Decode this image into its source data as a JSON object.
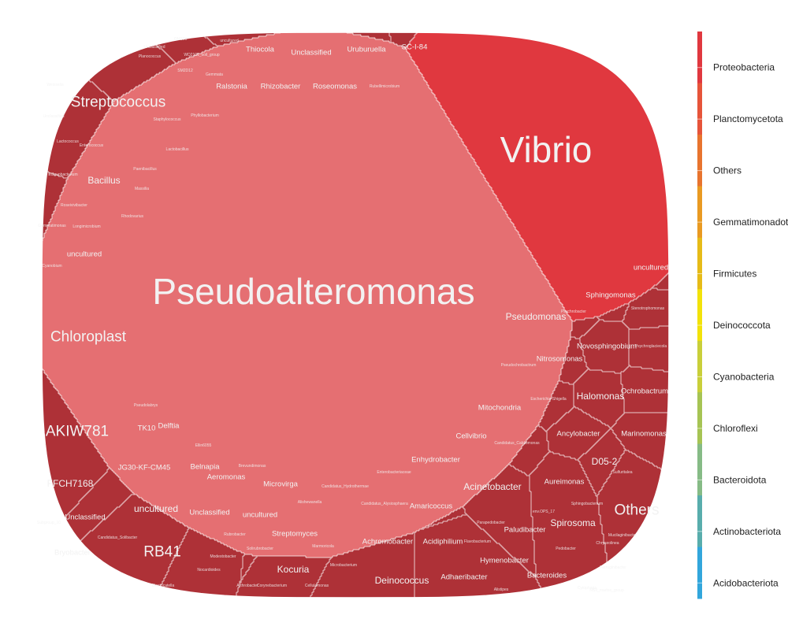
{
  "chart_data": {
    "type": "voronoi-treemap",
    "legend": {
      "position": "right",
      "entries": [
        {
          "name": "Proteobacteria",
          "color": "#e0383f"
        },
        {
          "name": "Planctomycetota",
          "color": "#e6543a"
        },
        {
          "name": "Others",
          "color": "#e8742e"
        },
        {
          "name": "Gemmatimonadota",
          "color": "#e99a22"
        },
        {
          "name": "Firmicutes",
          "color": "#e6bb18"
        },
        {
          "name": "Deinococcota",
          "color": "#f2e20a"
        },
        {
          "name": "Cyanobacteria",
          "color": "#c9cf3a"
        },
        {
          "name": "Chloroflexi",
          "color": "#a6c454"
        },
        {
          "name": "Bacteroidota",
          "color": "#86bb86"
        },
        {
          "name": "Actinobacteriota",
          "color": "#58adac"
        },
        {
          "name": "Acidobacteriota",
          "color": "#32a6dc"
        }
      ]
    },
    "genera": [
      {
        "name": "Vibrio",
        "phylum": "Proteobacteria",
        "rank": 1
      },
      {
        "name": "Pseudoalteromonas",
        "phylum": "Proteobacteria",
        "rank": 1
      },
      {
        "name": "Chloroplast",
        "phylum": "Cyanobacteria",
        "rank": 2
      },
      {
        "name": "Streptococcus",
        "phylum": "Firmicutes",
        "rank": 2
      },
      {
        "name": "AKIW781",
        "phylum": "Chloroflexi",
        "rank": 2
      },
      {
        "name": "Others",
        "phylum": "Others",
        "rank": 2
      },
      {
        "name": "RB41",
        "phylum": "Acidobacteriota",
        "rank": 2
      },
      {
        "name": "Pseudomonas",
        "phylum": "Proteobacteria",
        "rank": 3
      },
      {
        "name": "Acinetobacter",
        "phylum": "Proteobacteria",
        "rank": 3
      },
      {
        "name": "Halomonas",
        "phylum": "Proteobacteria",
        "rank": 3
      },
      {
        "name": "Deinococcus",
        "phylum": "Deinococcota",
        "rank": 3
      },
      {
        "name": "D05-2",
        "phylum": "Proteobacteria",
        "rank": 3
      },
      {
        "name": "Spirosoma",
        "phylum": "Bacteroidota",
        "rank": 3
      },
      {
        "name": "FFCH7168",
        "phylum": "Chloroflexi",
        "rank": 3
      },
      {
        "name": "Bacillus",
        "phylum": "Firmicutes",
        "rank": 3
      },
      {
        "name": "uncultured",
        "phylum": "Acidobacteriota",
        "rank": 3
      },
      {
        "name": "Kocuria",
        "phylum": "Actinobacteriota",
        "rank": 3
      },
      {
        "name": "Ralstonia",
        "phylum": "Proteobacteria",
        "rank": 4
      },
      {
        "name": "Rhizobacter",
        "phylum": "Proteobacteria",
        "rank": 4
      },
      {
        "name": "Roseomonas",
        "phylum": "Proteobacteria",
        "rank": 4
      },
      {
        "name": "Thiocola",
        "phylum": "Proteobacteria",
        "rank": 4
      },
      {
        "name": "Unclassified",
        "phylum": "Proteobacteria",
        "rank": 4
      },
      {
        "name": "Uruburuella",
        "phylum": "Proteobacteria",
        "rank": 4
      },
      {
        "name": "SC-I-84",
        "phylum": "Proteobacteria",
        "rank": 4
      },
      {
        "name": "Mitochondria",
        "phylum": "Proteobacteria",
        "rank": 4
      },
      {
        "name": "Ancylobacter",
        "phylum": "Proteobacteria",
        "rank": 4
      },
      {
        "name": "Marinomonas",
        "phylum": "Proteobacteria",
        "rank": 4
      },
      {
        "name": "Aureimonas",
        "phylum": "Proteobacteria",
        "rank": 4
      },
      {
        "name": "Amaricoccus",
        "phylum": "Proteobacteria",
        "rank": 4
      },
      {
        "name": "Acidiphilium",
        "phylum": "Proteobacteria",
        "rank": 4
      },
      {
        "name": "Achromobacter",
        "phylum": "Proteobacteria",
        "rank": 4
      },
      {
        "name": "Aeromonas",
        "phylum": "Proteobacteria",
        "rank": 4
      },
      {
        "name": "Delftia",
        "phylum": "Proteobacteria",
        "rank": 4
      },
      {
        "name": "Belnapia",
        "phylum": "Proteobacteria",
        "rank": 4
      },
      {
        "name": "Microvirga",
        "phylum": "Proteobacteria",
        "rank": 4
      },
      {
        "name": "Cellvibrio",
        "phylum": "Proteobacteria",
        "rank": 4
      },
      {
        "name": "Nitrosomonas",
        "phylum": "Proteobacteria",
        "rank": 4
      },
      {
        "name": "Novosphingobium",
        "phylum": "Proteobacteria",
        "rank": 4
      },
      {
        "name": "Ochrobactrum",
        "phylum": "Proteobacteria",
        "rank": 4
      },
      {
        "name": "Sphingomonas",
        "phylum": "Proteobacteria",
        "rank": 4
      },
      {
        "name": "uncultured",
        "phylum": "Proteobacteria",
        "rank": 4
      },
      {
        "name": "Enhydrobacter",
        "phylum": "Proteobacteria",
        "rank": 4
      },
      {
        "name": "Rubellimicrobium",
        "phylum": "Proteobacteria",
        "rank": 5
      },
      {
        "name": "Phyllobacterium",
        "phylum": "Proteobacteria",
        "rank": 5
      },
      {
        "name": "Massilia",
        "phylum": "Proteobacteria",
        "rank": 5
      },
      {
        "name": "Ellin6055",
        "phylum": "Proteobacteria",
        "rank": 5
      },
      {
        "name": "Brevundimonas",
        "phylum": "Proteobacteria",
        "rank": 5
      },
      {
        "name": "Alishewanella",
        "phylum": "Proteobacteria",
        "rank": 5
      },
      {
        "name": "Pseudochrobactrum",
        "phylum": "Proteobacteria",
        "rank": 5
      },
      {
        "name": "Escherichia-Shigella",
        "phylum": "Proteobacteria",
        "rank": 5
      },
      {
        "name": "Psychrobacter",
        "phylum": "Proteobacteria",
        "rank": 5
      },
      {
        "name": "Stenotrophomonas",
        "phylum": "Proteobacteria",
        "rank": 5
      },
      {
        "name": "Psychroglaciecola",
        "phylum": "Proteobacteria",
        "rank": 5
      },
      {
        "name": "Candidatus_Alysiosphaera",
        "phylum": "Proteobacteria",
        "rank": 5
      },
      {
        "name": "Candidatus_Caldiomonas",
        "phylum": "Proteobacteria",
        "rank": 5
      },
      {
        "name": "Candidatus_Hydrothermae",
        "phylum": "Proteobacteria",
        "rank": 5
      },
      {
        "name": "Enterobacteriaceae",
        "phylum": "Proteobacteria",
        "rank": 5
      },
      {
        "name": "Pseudolabrys",
        "phylum": "Proteobacteria",
        "rank": 5
      },
      {
        "name": "Rhodovarius",
        "phylum": "Proteobacteria",
        "rank": 5
      },
      {
        "name": "Sulfuritalea",
        "phylum": "Proteobacteria",
        "rank": 5
      },
      {
        "name": "OM190",
        "phylum": "Planctomycetota",
        "rank": 5
      },
      {
        "name": "Unclassified",
        "phylum": "Planctomycetota",
        "rank": 5
      },
      {
        "name": "uncultured",
        "phylum": "Planctomycetota",
        "rank": 5
      },
      {
        "name": "SM2D12",
        "phylum": "Planctomycetota",
        "rank": 5
      },
      {
        "name": "WD2101_soil_group",
        "phylum": "Planctomycetota",
        "rank": 5
      },
      {
        "name": "Gemmata",
        "phylum": "Planctomycetota",
        "rank": 5
      },
      {
        "name": "Lactobacillus",
        "phylum": "Firmicutes",
        "rank": 5
      },
      {
        "name": "Staphylococcus",
        "phylum": "Firmicutes",
        "rank": 5
      },
      {
        "name": "Unclassified",
        "phylum": "Firmicutes",
        "rank": 5
      },
      {
        "name": "Lactococcus",
        "phylum": "Firmicutes",
        "rank": 5
      },
      {
        "name": "Enterococcus",
        "phylum": "Firmicutes",
        "rank": 5
      },
      {
        "name": "Exiguobacterium",
        "phylum": "Firmicutes",
        "rank": 5
      },
      {
        "name": "Weissella",
        "phylum": "Firmicutes",
        "rank": 5
      },
      {
        "name": "Paenibacillus",
        "phylum": "Firmicutes",
        "rank": 5
      },
      {
        "name": "Planococcus",
        "phylum": "Firmicutes",
        "rank": 5
      },
      {
        "name": "Roseivivibacter",
        "phylum": "Gemmatimonadota",
        "rank": 5
      },
      {
        "name": "Longimicrobium",
        "phylum": "Gemmatimonadota",
        "rank": 5
      },
      {
        "name": "Gemmatimonas",
        "phylum": "Gemmatimonadota",
        "rank": 5
      },
      {
        "name": "uncultured",
        "phylum": "Cyanobacteria",
        "rank": 4
      },
      {
        "name": "Cyanobium",
        "phylum": "Cyanobacteria",
        "rank": 5
      },
      {
        "name": "TK10",
        "phylum": "Chloroflexi",
        "rank": 4
      },
      {
        "name": "JG30-KF-CM45",
        "phylum": "Chloroflexi",
        "rank": 4
      },
      {
        "name": "Unclassified",
        "phylum": "Acidobacteriota",
        "rank": 4
      },
      {
        "name": "Bryobacter",
        "phylum": "Acidobacteriota",
        "rank": 4
      },
      {
        "name": "Candidatus_Solibacter",
        "phylum": "Acidobacteriota",
        "rank": 5
      },
      {
        "name": "Blastocatella",
        "phylum": "Acidobacteriota",
        "rank": 5
      },
      {
        "name": "Subgroup_10",
        "phylum": "Acidobacteriota",
        "rank": 5
      },
      {
        "name": "Unclassified",
        "phylum": "Actinobacteriota",
        "rank": 4
      },
      {
        "name": "uncultured",
        "phylum": "Actinobacteriota",
        "rank": 4
      },
      {
        "name": "Streptomyces",
        "phylum": "Actinobacteriota",
        "rank": 4
      },
      {
        "name": "Cellulomonas",
        "phylum": "Actinobacteriota",
        "rank": 5
      },
      {
        "name": "Rubrobacter",
        "phylum": "Actinobacteriota",
        "rank": 5
      },
      {
        "name": "Solirubrobacter",
        "phylum": "Actinobacteriota",
        "rank": 5
      },
      {
        "name": "Modestobacter",
        "phylum": "Actinobacteriota",
        "rank": 5
      },
      {
        "name": "Nocardioides",
        "phylum": "Actinobacteriota",
        "rank": 5
      },
      {
        "name": "Microbacterium",
        "phylum": "Actinobacteriota",
        "rank": 5
      },
      {
        "name": "Arthrobacter",
        "phylum": "Actinobacteriota",
        "rank": 5
      },
      {
        "name": "Corynebacterium",
        "phylum": "Actinobacteriota",
        "rank": 5
      },
      {
        "name": "Marmoricola",
        "phylum": "Actinobacteriota",
        "rank": 5
      },
      {
        "name": "Paludibacter",
        "phylum": "Bacteroidota",
        "rank": 4
      },
      {
        "name": "Hymenobacter",
        "phylum": "Bacteroidota",
        "rank": 4
      },
      {
        "name": "Bacteroides",
        "phylum": "Bacteroidota",
        "rank": 4
      },
      {
        "name": "Adhaeribacter",
        "phylum": "Bacteroidota",
        "rank": 4
      },
      {
        "name": "Alistipes",
        "phylum": "Bacteroidota",
        "rank": 5
      },
      {
        "name": "Flavobacterium",
        "phylum": "Bacteroidota",
        "rank": 5
      },
      {
        "name": "Ferruginibacter",
        "phylum": "Bacteroidota",
        "rank": 5
      },
      {
        "name": "Chryseolinea",
        "phylum": "Bacteroidota",
        "rank": 5
      },
      {
        "name": "Cytophaga",
        "phylum": "Bacteroidota",
        "rank": 5
      },
      {
        "name": "Pedobacter",
        "phylum": "Bacteroidota",
        "rank": 5
      },
      {
        "name": "env.OPS_17",
        "phylum": "Bacteroidota",
        "rank": 5
      },
      {
        "name": "Sphingobacterium",
        "phylum": "Bacteroidota",
        "rank": 5
      },
      {
        "name": "Parapedobacter",
        "phylum": "Bacteroidota",
        "rank": 5
      },
      {
        "name": "Mucilaginibacter",
        "phylum": "Bacteroidota",
        "rank": 5
      },
      {
        "name": "NS9_marine_group",
        "phylum": "Bacteroidota",
        "rank": 5
      }
    ]
  }
}
